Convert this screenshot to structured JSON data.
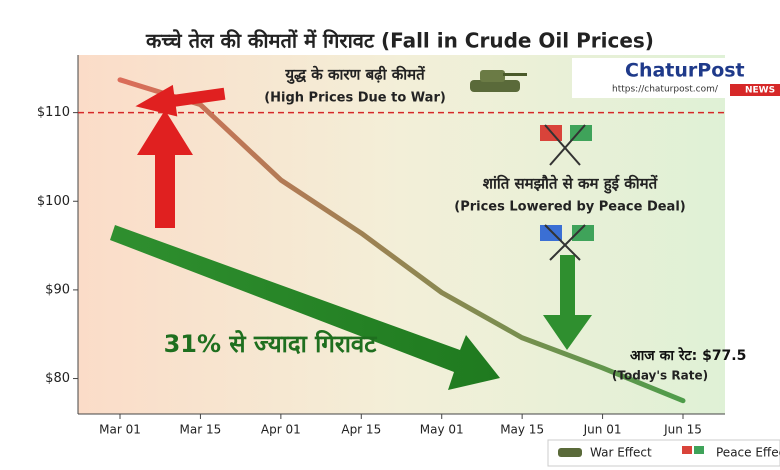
{
  "chart_data": {
    "type": "line",
    "title": "कच्चे तेल की कीमतों में गिरावट (Fall in Crude Oil Prices)",
    "categories": [
      "Mar 01",
      "Mar 15",
      "Apr 01",
      "Apr 15",
      "May 01",
      "May 15",
      "Jun 01",
      "Jun 15"
    ],
    "series": [
      {
        "name": "Crude Oil Price",
        "color": "#e06b5a",
        "end_color": "#4a9e4a",
        "values": [
          113.7,
          110.9,
          102.4,
          96.4,
          89.7,
          84.6,
          81.2,
          77.5
        ]
      }
    ],
    "ylim": [
      76,
      116.5
    ],
    "yticks": [
      {
        "value": 80,
        "label": "$80"
      },
      {
        "value": 90,
        "label": "$90"
      },
      {
        "value": 100,
        "label": "$100"
      },
      {
        "value": 110,
        "label": "$110"
      }
    ],
    "reference_line": {
      "value": 110,
      "color": "#d62828"
    },
    "annotations": {
      "war": "युद्ध के कारण बढ़ी कीमतें",
      "war_en": "(High Prices Due to War)",
      "peace": "शांति समझौते से कम हुई कीमतें",
      "peace_en": "(Prices Lowered by Peace Deal)",
      "drop": "31% से ज्यादा गिरावट",
      "today": "आज का रेट: $77.5",
      "today_en": "(Today's Rate)"
    },
    "legend": [
      "War Effect",
      "Peace Effect"
    ],
    "logo": {
      "brand": "ChaturPost",
      "url": "https://chaturpost.com/",
      "tag": "NEWS"
    }
  }
}
